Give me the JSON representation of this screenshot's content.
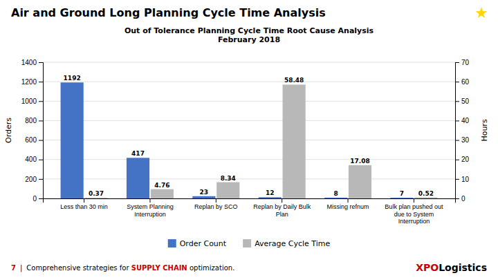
{
  "chart_data": {
    "type": "bar",
    "title": "Air and Ground Long Planning Cycle Time Analysis",
    "subtitle": "Out of Tolerance Planning Cycle Time Root Cause Analysis\nFebruary 2018",
    "categories": [
      "Less than 30 min",
      "System Planning\nInterruption",
      "Replan by SCO",
      "Replan by Daily Bulk\nPlan",
      "Missing refnum",
      "Bulk plan pushed out\ndue to System\nInterruption"
    ],
    "series": [
      {
        "name": "Order Count",
        "color": "#4472C4",
        "values": [
          1192,
          417,
          23,
          12,
          8,
          7
        ]
      },
      {
        "name": "Average Cycle Time",
        "color": "#B8B8B8",
        "values": [
          0.37,
          4.76,
          8.34,
          58.48,
          17.08,
          0.52
        ],
        "axis": "y2"
      }
    ],
    "ylabel": "Orders",
    "y2label": "Hours",
    "ylim": [
      0,
      1400
    ],
    "yticks": [
      0,
      200,
      400,
      600,
      800,
      1000,
      1200,
      1400
    ],
    "y2lim": [
      0,
      70
    ],
    "y2ticks": [
      0,
      10,
      20,
      30,
      40,
      50,
      60,
      70
    ],
    "grid": true,
    "legend": "bottom",
    "data_labels": true,
    "annotations": [
      {
        "text": "★",
        "color": "#FFD700"
      },
      {
        "text": "7",
        "color": "#CC0000"
      },
      {
        "text": "|"
      },
      {
        "text": "Comprehensive strategies for "
      },
      {
        "text": "SUPPLY CHAIN",
        "color": "#CC0000"
      },
      {
        "text": " optimization."
      },
      {
        "text": "XPO",
        "color": "#CC0000"
      },
      {
        "text": "Logistics"
      }
    ]
  }
}
